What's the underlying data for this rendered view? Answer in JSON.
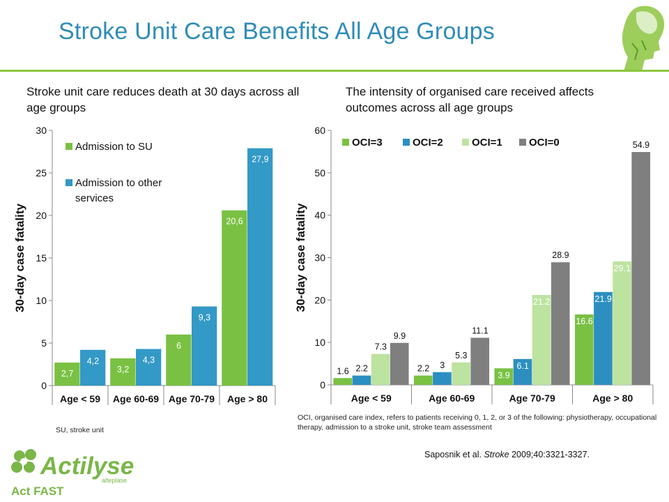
{
  "slide": {
    "title": "Stroke Unit Care Benefits All Age Groups",
    "left_subtitle": "Stroke unit care reduces death at 30 days across all age groups",
    "right_subtitle": "The intensity of organised care received affects outcomes across all age groups",
    "su_note": "SU, stroke unit",
    "oci_note": "OCI, organised care index, refers to patients receiving 0, 1, 2, or 3 of the following: physiotherapy, occupational therapy, admission to a stroke unit, stroke team assessment",
    "citation_prefix": "Saposnik et al. ",
    "citation_journal": "Stroke",
    "citation_suffix": " 2009;40:3321-3327.",
    "brand": {
      "name": "Actilyse",
      "sub": "alteplase",
      "tagline": "Act FAST",
      "color": "#7ab648"
    },
    "colors": {
      "title": "#2e8cb8",
      "rule": "#8cc63e"
    }
  },
  "chart_data": [
    {
      "type": "bar",
      "categories": [
        "Age < 59",
        "Age 60-69",
        "Age 70-79",
        "Age > 80"
      ],
      "ylabel": "30-day case fatality",
      "xlabel": "",
      "ylim": [
        0,
        30
      ],
      "yticks": [
        0,
        5,
        10,
        15,
        20,
        25,
        30
      ],
      "grid": false,
      "legend_position": "top-left",
      "series": [
        {
          "name": "Admission to SU",
          "color": "#7ac143",
          "values": [
            2.7,
            3.2,
            6,
            20.6
          ],
          "labels": [
            "2,7",
            "3,2",
            "6",
            "20,6"
          ]
        },
        {
          "name": "Admission to other services",
          "color": "#3399c6",
          "values": [
            4.2,
            4.3,
            9.3,
            27.9
          ],
          "labels": [
            "4,2",
            "4,3",
            "9,3",
            "27,9"
          ]
        }
      ]
    },
    {
      "type": "bar",
      "categories": [
        "Age < 59",
        "Age 60-69",
        "Age 70-79",
        "Age > 80"
      ],
      "ylabel": "30-day case fatality",
      "xlabel": "",
      "ylim": [
        0,
        60
      ],
      "yticks": [
        0,
        10,
        20,
        30,
        40,
        50,
        60
      ],
      "grid": false,
      "legend_position": "top",
      "series": [
        {
          "name": "OCI=3",
          "color": "#7ac143",
          "values": [
            1.6,
            2.2,
            3.9,
            16.6
          ],
          "labels": [
            "1.6",
            "2.2",
            "3.9",
            "16.6"
          ]
        },
        {
          "name": "OCI=2",
          "color": "#2c8fc0",
          "values": [
            2.2,
            3,
            6.1,
            21.9
          ],
          "labels": [
            "2.2",
            "3",
            "6.1",
            "21.9"
          ]
        },
        {
          "name": "OCI=1",
          "color": "#bde3a0",
          "values": [
            7.3,
            5.3,
            21.2,
            29.1
          ],
          "labels": [
            "7.3",
            "5.3",
            "21.2",
            "29.1"
          ]
        },
        {
          "name": "OCI=0",
          "color": "#7f7f7f",
          "values": [
            9.9,
            11.1,
            28.9,
            54.9
          ],
          "labels": [
            "9.9",
            "11.1",
            "28.9",
            "54.9"
          ]
        }
      ]
    }
  ]
}
